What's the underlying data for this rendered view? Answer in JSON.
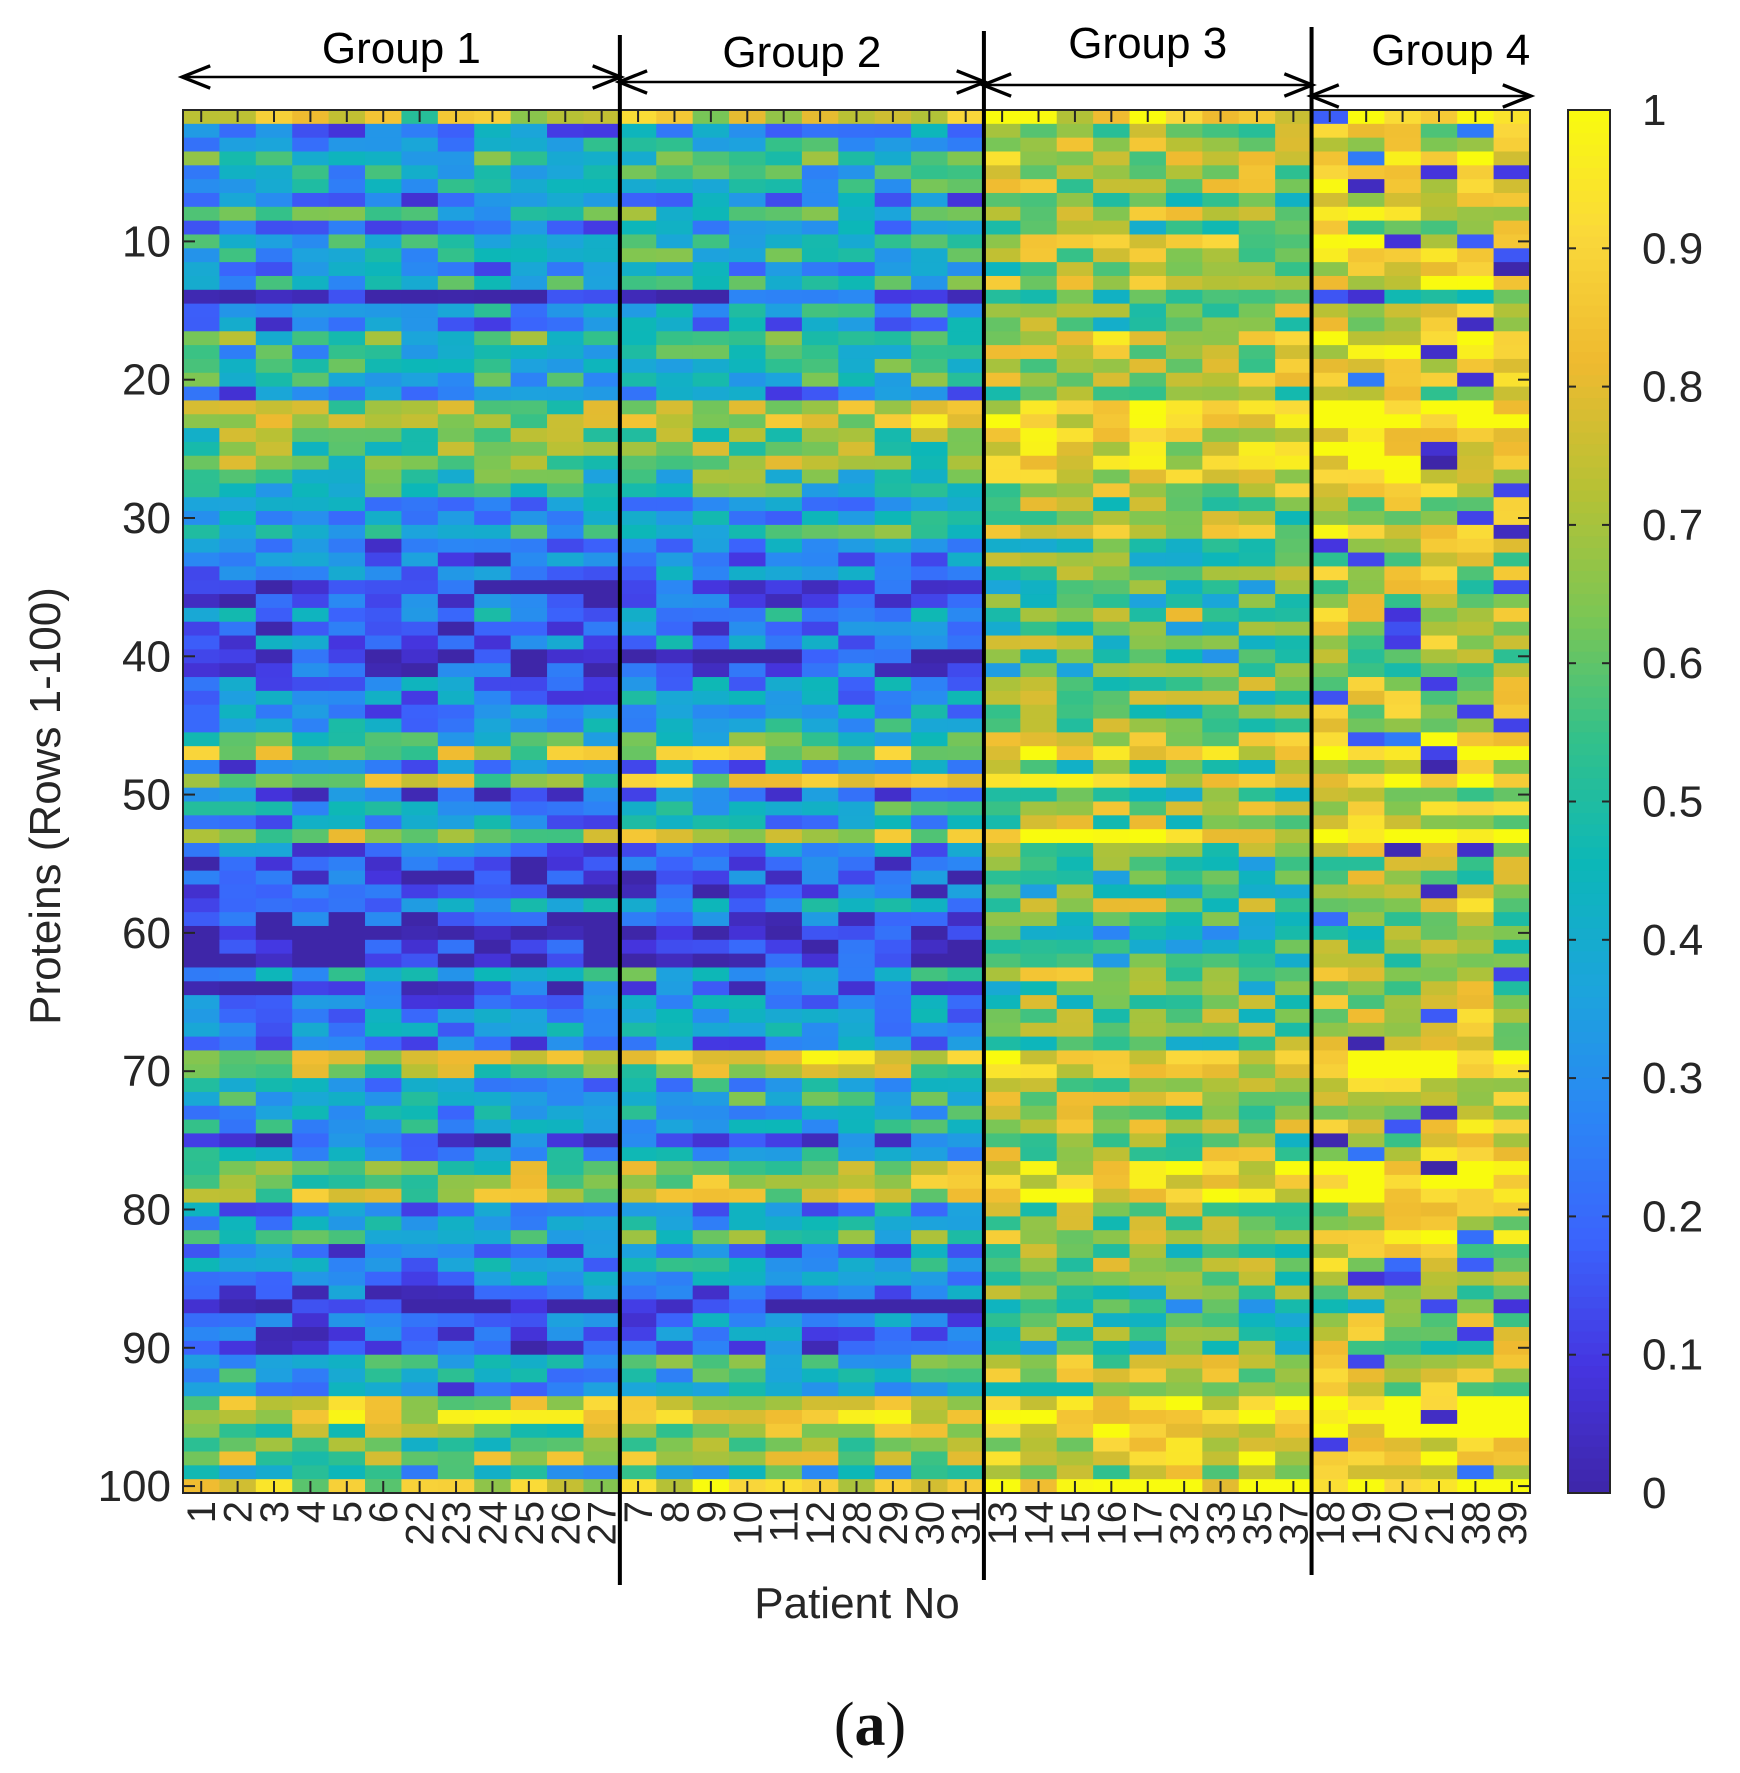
{
  "chart_data": {
    "type": "heatmap",
    "xlabel": "Patient No",
    "ylabel": "Proteins (Rows 1-100)",
    "x_tick_labels": [
      "1",
      "2",
      "3",
      "4",
      "5",
      "6",
      "22",
      "23",
      "24",
      "25",
      "26",
      "27",
      "7",
      "8",
      "9",
      "10",
      "11",
      "12",
      "28",
      "29",
      "30",
      "31",
      "13",
      "14",
      "15",
      "16",
      "17",
      "32",
      "33",
      "35",
      "37",
      "18",
      "19",
      "20",
      "21",
      "38",
      "39"
    ],
    "y_range": [
      1,
      100
    ],
    "y_ticks": [
      10,
      20,
      30,
      40,
      50,
      60,
      70,
      80,
      90,
      100
    ],
    "colorbar": {
      "range": [
        0,
        1
      ],
      "ticks": [
        0,
        0.1,
        0.2,
        0.3,
        0.4,
        0.5,
        0.6,
        0.7,
        0.8,
        0.9,
        1
      ],
      "tick_labels": [
        "0",
        "0.1",
        "0.2",
        "0.3",
        "0.4",
        "0.5",
        "0.6",
        "0.7",
        "0.8",
        "0.9",
        "1"
      ],
      "colormap": "parula"
    },
    "groups": [
      {
        "label": "Group 1",
        "first_col": 0,
        "last_col": 11
      },
      {
        "label": "Group 2",
        "first_col": 12,
        "last_col": 21
      },
      {
        "label": "Group 3",
        "first_col": 22,
        "last_col": 30
      },
      {
        "label": "Group 4",
        "first_col": 31,
        "last_col": 36
      }
    ],
    "group_mean_level": [
      0.33,
      0.38,
      0.65,
      0.78
    ],
    "row_level_pattern": "high-value bands near rows 1, 17, 22-26, 47, 49, 53, 69-70, 77-79, 94-100; low-value bands near rows 9, 14, 35-43, 55-62, 85-90",
    "colors": {
      "parula_stops": [
        "#3e26a8",
        "#4535e0",
        "#3b63fc",
        "#2b86f5",
        "#1ca4dc",
        "#0cb7b8",
        "#33c18a",
        "#7dc653",
        "#b8c134",
        "#efba30",
        "#fad83b",
        "#f9fb0e"
      ]
    }
  },
  "caption": {
    "label": "a"
  }
}
